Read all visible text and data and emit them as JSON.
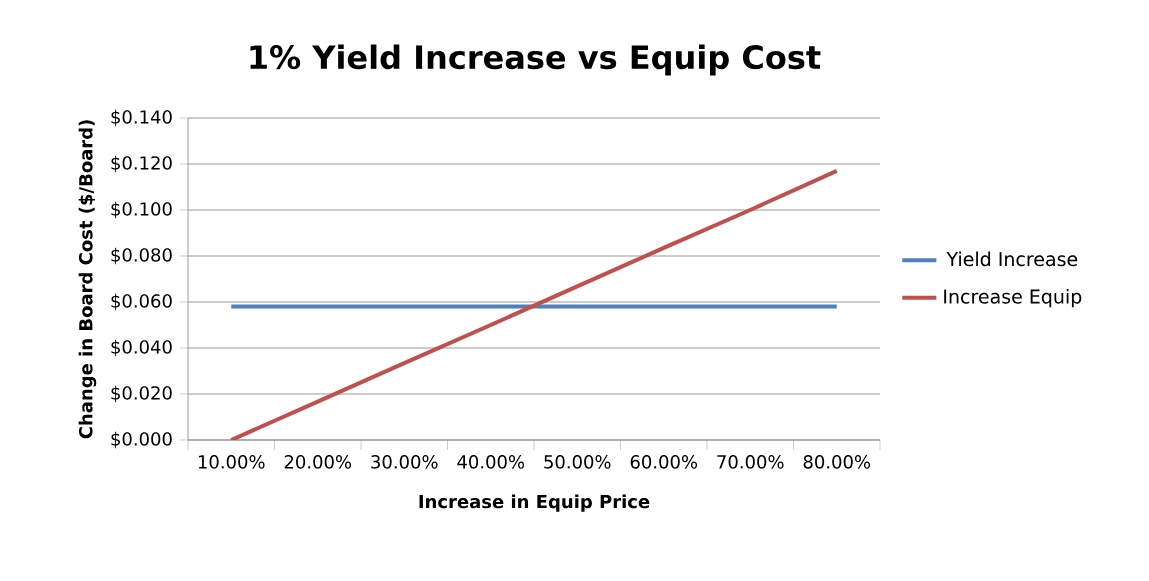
{
  "chart_data": {
    "type": "line",
    "title": "1% Yield Increase vs Equip Cost",
    "xlabel": "Increase in Equip Price",
    "ylabel": "Change in Board Cost ($/Board)",
    "categories": [
      "10.00%",
      "20.00%",
      "30.00%",
      "40.00%",
      "50.00%",
      "60.00%",
      "70.00%",
      "80.00%"
    ],
    "series": [
      {
        "name": "Yield Increase",
        "color": "#4f81bd",
        "values": [
          0.058,
          0.058,
          0.058,
          0.058,
          0.058,
          0.058,
          0.058,
          0.058
        ]
      },
      {
        "name": "Increase Equip",
        "color": "#c0504d",
        "values": [
          0.0,
          0.0167,
          0.0334,
          0.05,
          0.0668,
          0.0835,
          0.1,
          0.117
        ]
      }
    ],
    "ylim": [
      0,
      0.14
    ],
    "yticks": [
      {
        "value": 0,
        "label": "$0.000"
      },
      {
        "value": 0.02,
        "label": "$0.020"
      },
      {
        "value": 0.04,
        "label": "$0.040"
      },
      {
        "value": 0.06,
        "label": "$0.060"
      },
      {
        "value": 0.08,
        "label": "$0.080"
      },
      {
        "value": 0.1,
        "label": "$0.100"
      },
      {
        "value": 0.12,
        "label": "$0.120"
      },
      {
        "value": 0.14,
        "label": "$0.140"
      }
    ],
    "grid": "y",
    "legend": "right",
    "marker": "none",
    "line_style": "solid"
  }
}
